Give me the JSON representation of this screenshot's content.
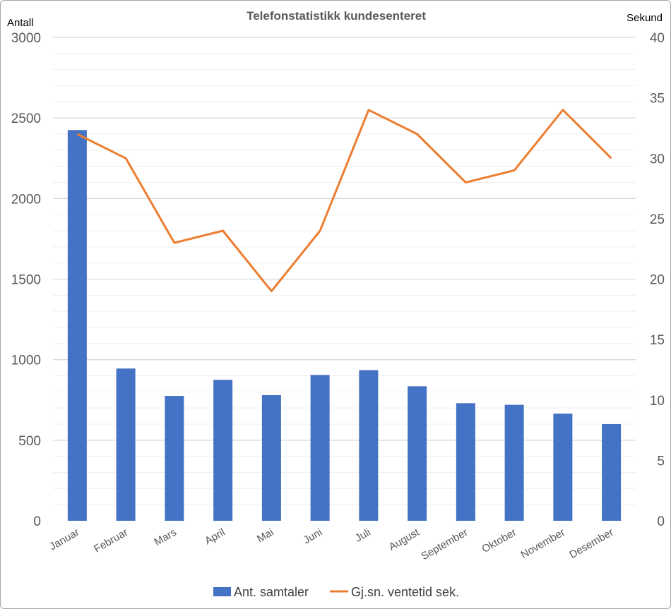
{
  "chart_data": {
    "type": "bar",
    "title": "Telefonstatistikk kundesenteret",
    "y_left_label": "Antall",
    "y_right_label": "Sekund",
    "categories": [
      "Januar",
      "Februar",
      "Mars",
      "April",
      "Mai",
      "Juni",
      "Juli",
      "August",
      "September",
      "Oktober",
      "November",
      "Desember"
    ],
    "series": [
      {
        "name": "Ant. samtaler",
        "type": "bar",
        "axis": "left",
        "color": "#4472c4",
        "values": [
          2425,
          945,
          775,
          875,
          780,
          905,
          935,
          835,
          730,
          720,
          665,
          600
        ]
      },
      {
        "name": "Gj.sn. ventetid sek.",
        "type": "line",
        "axis": "right",
        "color": "#ed7d31",
        "values": [
          32,
          30,
          23,
          24,
          19,
          24,
          34,
          32,
          28,
          29,
          34,
          30
        ]
      }
    ],
    "y_left_range": [
      0,
      3000
    ],
    "y_left_ticks": [
      0,
      500,
      1000,
      1500,
      2000,
      2500,
      3000
    ],
    "y_right_range": [
      0,
      40
    ],
    "y_right_ticks": [
      0,
      5,
      10,
      15,
      20,
      25,
      30,
      35,
      40
    ],
    "grid": true,
    "legend_position": "bottom"
  }
}
